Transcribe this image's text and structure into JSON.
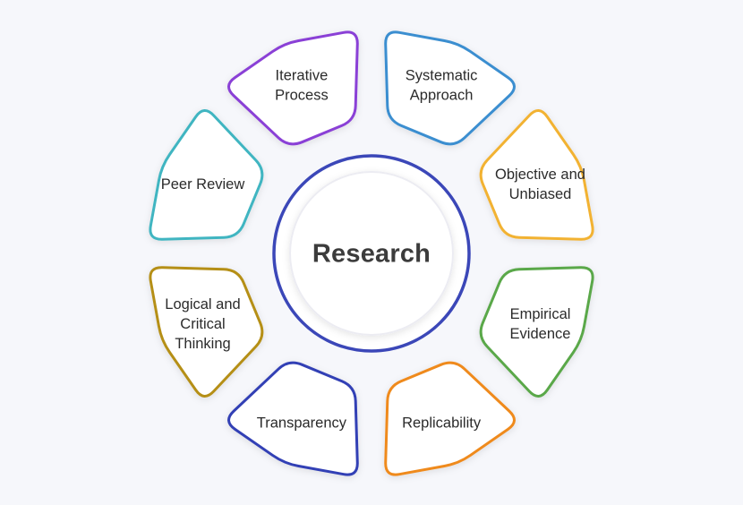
{
  "diagram": {
    "center": {
      "label": "Research",
      "ring_color": "#3b47b8"
    },
    "segments": [
      {
        "lines": [
          "Systematic",
          "Approach"
        ],
        "color": "#3b8ed0"
      },
      {
        "lines": [
          "Objective and",
          "Unbiased"
        ],
        "color": "#f2b230"
      },
      {
        "lines": [
          "Empirical",
          "Evidence"
        ],
        "color": "#5aa84a"
      },
      {
        "lines": [
          "Replicability"
        ],
        "color": "#ef8a1e"
      },
      {
        "lines": [
          "Transparency"
        ],
        "color": "#3240b5"
      },
      {
        "lines": [
          "Logical and",
          "Critical",
          "Thinking"
        ],
        "color": "#b58f17"
      },
      {
        "lines": [
          "Peer Review"
        ],
        "color": "#3fb5c1"
      },
      {
        "lines": [
          "Iterative",
          "Process"
        ],
        "color": "#8a3fd6"
      }
    ]
  }
}
